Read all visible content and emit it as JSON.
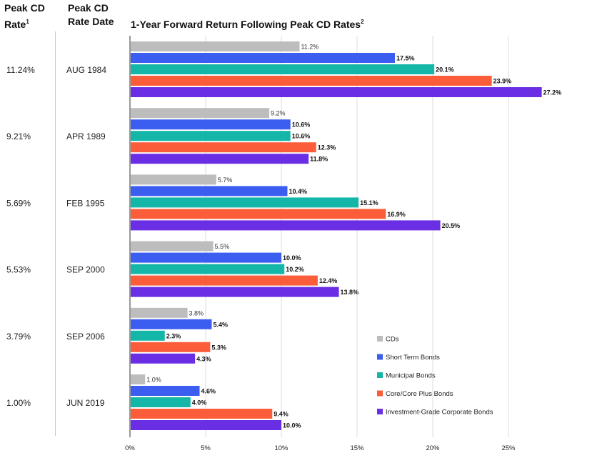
{
  "header": {
    "rate_col_line1": "Peak CD",
    "rate_col_line2": "Rate",
    "rate_col_sup": "1",
    "date_col_line1": "Peak CD",
    "date_col_line2": "Rate Date",
    "title": "1-Year Forward Return Following Peak CD Rates",
    "title_sup": "2"
  },
  "chart_data": {
    "type": "bar",
    "orientation": "horizontal",
    "title": "1-Year Forward Return Following Peak CD Rates",
    "categories": [
      "AUG 1984",
      "APR 1989",
      "FEB 1995",
      "SEP 2000",
      "SEP 2006",
      "JUN 2019"
    ],
    "peak_cd_rates": [
      "11.24%",
      "9.21%",
      "5.69%",
      "5.53%",
      "3.79%",
      "1.00%"
    ],
    "series": [
      {
        "name": "CDs",
        "color": "#bdbdbd",
        "values": [
          11.2,
          9.2,
          5.7,
          5.5,
          3.8,
          1.0
        ],
        "labels": [
          "11.2%",
          "9.2%",
          "5.7%",
          "5.5%",
          "3.8%",
          "1.0%"
        ],
        "bold": false
      },
      {
        "name": "Short Term Bonds",
        "color": "#3b5ef0",
        "values": [
          17.5,
          10.6,
          10.4,
          10.0,
          5.4,
          4.6
        ],
        "labels": [
          "17.5%",
          "10.6%",
          "10.4%",
          "10.0%",
          "5.4%",
          "4.6%"
        ],
        "bold": true
      },
      {
        "name": "Municipal Bonds",
        "color": "#14b6a8",
        "values": [
          20.1,
          10.6,
          15.1,
          10.2,
          2.3,
          4.0
        ],
        "labels": [
          "20.1%",
          "10.6%",
          "15.1%",
          "10.2%",
          "2.3%",
          "4.0%"
        ],
        "bold": true
      },
      {
        "name": "Core/Core Plus Bonds",
        "color": "#fb5d3a",
        "values": [
          23.9,
          12.3,
          16.9,
          12.4,
          5.3,
          9.4
        ],
        "labels": [
          "23.9%",
          "12.3%",
          "16.9%",
          "12.4%",
          "5.3%",
          "9.4%"
        ],
        "bold": true
      },
      {
        "name": "Investment-Grade Corporate Bonds",
        "color": "#6a2fe4",
        "values": [
          27.2,
          11.8,
          20.5,
          13.8,
          4.3,
          10.0
        ],
        "labels": [
          "27.2%",
          "11.8%",
          "20.5%",
          "13.8%",
          "4.3%",
          "10.0%"
        ],
        "bold": true
      }
    ],
    "xlim": [
      0,
      30
    ],
    "xticks": [
      0,
      5,
      10,
      15,
      20,
      25
    ],
    "xtick_labels": [
      "0%",
      "5%",
      "10%",
      "15%",
      "20%",
      "25%"
    ],
    "grid": true,
    "legend_position": "bottom-right"
  }
}
